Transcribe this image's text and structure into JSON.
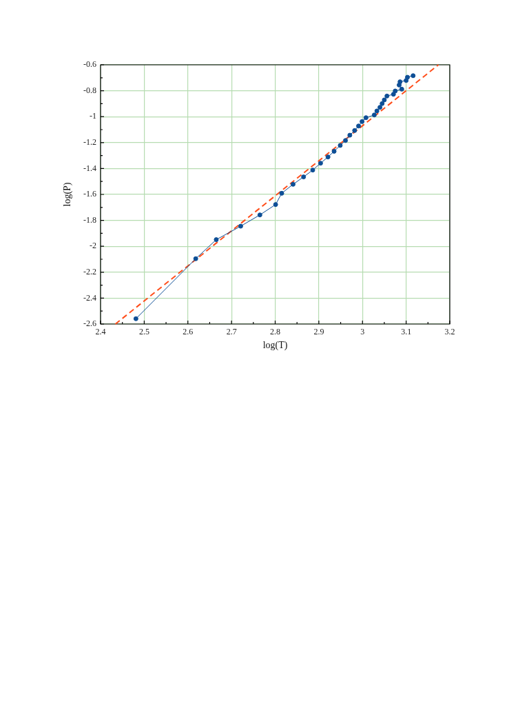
{
  "chart_data": {
    "type": "line",
    "xlabel": "log(T)",
    "ylabel": "log(P)",
    "xlim": [
      2.4,
      3.2
    ],
    "ylim": [
      -2.6,
      -0.6
    ],
    "xticks": [
      2.4,
      {
        "value": 2.45,
        "label": null
      },
      2.5,
      {
        "value": 2.55,
        "label": null
      },
      2.6,
      {
        "value": 2.65,
        "label": null
      },
      2.7,
      {
        "value": 2.75,
        "label": null
      },
      2.8,
      {
        "value": 2.85,
        "label": null
      },
      2.9,
      {
        "value": 2.95,
        "label": null
      },
      3,
      {
        "value": 3.05,
        "label": null
      },
      3.1,
      {
        "value": 3.15,
        "label": null
      },
      3.2
    ],
    "yticks": [
      -2.6,
      {
        "value": -2.5,
        "label": null
      },
      -2.4,
      {
        "value": -2.3,
        "label": null
      },
      -2.2,
      {
        "value": -2.1,
        "label": null
      },
      -2,
      {
        "value": -1.9,
        "label": null
      },
      -1.8,
      {
        "value": -1.7,
        "label": null
      },
      -1.6,
      {
        "value": -1.5,
        "label": null
      },
      -1.4,
      {
        "value": -1.3,
        "label": null
      },
      -1.2,
      {
        "value": -1.1,
        "label": null
      },
      -1,
      {
        "value": -0.9,
        "label": null
      },
      -0.8,
      {
        "value": -0.7,
        "label": null
      },
      -0.6
    ],
    "grid": true,
    "marker": "circle",
    "series": [
      {
        "color": "#0e4f96",
        "x": [
          2.481,
          2.618,
          2.665,
          2.721,
          2.765,
          2.801,
          2.815,
          2.841,
          2.865,
          2.886,
          2.904,
          2.921,
          2.935,
          2.949,
          2.961,
          2.971,
          2.982,
          2.991,
          2.999,
          3.008,
          3.027,
          3.033,
          3.04,
          3.045,
          3.05,
          3.056,
          3.071,
          3.075,
          3.09,
          3.084,
          3.086,
          3.1,
          3.103,
          3.116
        ],
        "values": [
          -2.559,
          -2.096,
          -1.949,
          -1.845,
          -1.758,
          -1.678,
          -1.591,
          -1.522,
          -1.465,
          -1.412,
          -1.359,
          -1.311,
          -1.267,
          -1.222,
          -1.184,
          -1.143,
          -1.107,
          -1.072,
          -1.038,
          -1.008,
          -0.987,
          -0.956,
          -0.928,
          -0.899,
          -0.871,
          -0.841,
          -0.827,
          -0.802,
          -0.788,
          -0.756,
          -0.731,
          -0.721,
          -0.696,
          -0.684
        ]
      },
      {
        "color": "#ff4d1a",
        "line_style": "dashed",
        "marker": "none",
        "x": [
          2.434,
          3.174
        ],
        "values": [
          -2.6,
          -0.6
        ]
      }
    ]
  }
}
